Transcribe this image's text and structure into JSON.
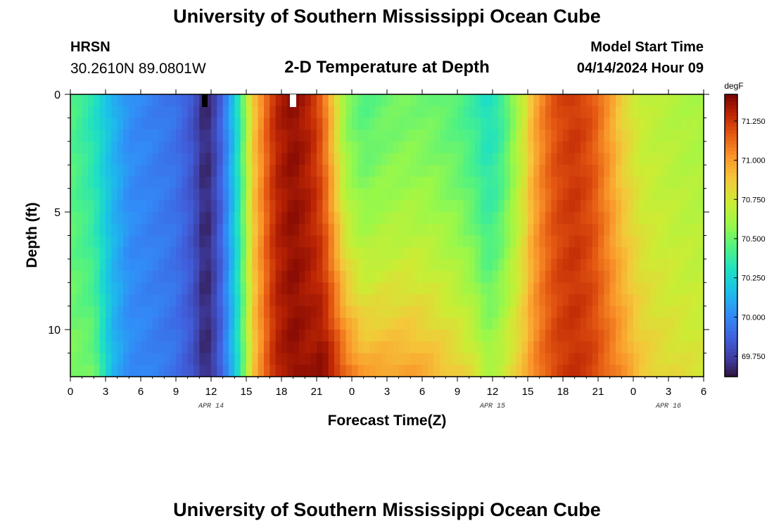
{
  "header": {
    "title": "University of Southern Mississippi Ocean Cube",
    "station": "HRSN",
    "coordinates": "30.2610N  89.0801W",
    "plot_title": "2-D Temperature at Depth",
    "start_label": "Model Start Time",
    "start_value": "04/14/2024 Hour 09"
  },
  "footer": {
    "title": "University of Southern Mississippi Ocean Cube"
  },
  "chart_data": {
    "type": "heatmap",
    "title": "2-D Temperature at Depth",
    "xlabel": "Forecast Time(Z)",
    "ylabel": "Depth (ft)",
    "x_range_hours": [
      0,
      54
    ],
    "x_ticks": [
      "0",
      "3",
      "6",
      "9",
      "12",
      "15",
      "18",
      "21",
      "0",
      "3",
      "6",
      "9",
      "12",
      "15",
      "18",
      "21",
      "0",
      "3",
      "6"
    ],
    "date_labels": [
      {
        "label": "APR 14",
        "hour": 12
      },
      {
        "label": "APR 15",
        "hour": 36
      },
      {
        "label": "APR 16",
        "hour": 51
      }
    ],
    "y_range_ft": [
      0,
      12
    ],
    "y_ticks": [
      "0",
      "5",
      "10"
    ],
    "y_reversed": true,
    "colorbar": {
      "unit": "degF",
      "range": [
        69.62,
        71.42
      ],
      "ticks": [
        "69.750",
        "70.000",
        "70.250",
        "70.500",
        "70.750",
        "71.000",
        "71.250"
      ]
    },
    "profile": [
      {
        "t": 0,
        "v": 70.45,
        "d": 0.1
      },
      {
        "t": 2,
        "v": 70.32,
        "d": 0.2
      },
      {
        "t": 3.5,
        "v": 70.15,
        "d": 0.0
      },
      {
        "t": 5,
        "v": 70.02,
        "d": 0.0
      },
      {
        "t": 7,
        "v": 69.98,
        "d": 0.0
      },
      {
        "t": 9,
        "v": 69.93,
        "d": 0.0
      },
      {
        "t": 10.5,
        "v": 69.82,
        "d": 0.0
      },
      {
        "t": 11.5,
        "v": 69.66,
        "d": 0.0
      },
      {
        "t": 12.5,
        "v": 69.8,
        "d": 0.0
      },
      {
        "t": 13.5,
        "v": 70.05,
        "d": 0.0
      },
      {
        "t": 14.5,
        "v": 70.38,
        "d": 0.0
      },
      {
        "t": 15.5,
        "v": 70.85,
        "d": 0.0
      },
      {
        "t": 16.5,
        "v": 71.1,
        "d": 0.0
      },
      {
        "t": 17.5,
        "v": 71.3,
        "d": 0.0
      },
      {
        "t": 19,
        "v": 71.38,
        "d": 0.0
      },
      {
        "t": 20.5,
        "v": 71.3,
        "d": 0.05
      },
      {
        "t": 21.5,
        "v": 71.15,
        "d": 0.25
      },
      {
        "t": 22.5,
        "v": 70.85,
        "d": 0.45
      },
      {
        "t": 23.5,
        "v": 70.55,
        "d": 0.6
      },
      {
        "t": 25,
        "v": 70.45,
        "d": 0.55
      },
      {
        "t": 27,
        "v": 70.5,
        "d": 0.5
      },
      {
        "t": 29,
        "v": 70.52,
        "d": 0.48
      },
      {
        "t": 31,
        "v": 70.5,
        "d": 0.45
      },
      {
        "t": 33,
        "v": 70.45,
        "d": 0.42
      },
      {
        "t": 34.5,
        "v": 70.38,
        "d": 0.4
      },
      {
        "t": 35.5,
        "v": 70.3,
        "d": 0.35
      },
      {
        "t": 36.5,
        "v": 70.35,
        "d": 0.35
      },
      {
        "t": 37.5,
        "v": 70.5,
        "d": 0.3
      },
      {
        "t": 38.5,
        "v": 70.7,
        "d": 0.2
      },
      {
        "t": 39.5,
        "v": 70.95,
        "d": 0.1
      },
      {
        "t": 40.5,
        "v": 71.1,
        "d": 0.05
      },
      {
        "t": 41.5,
        "v": 71.2,
        "d": 0.03
      },
      {
        "t": 43,
        "v": 71.25,
        "d": 0.02
      },
      {
        "t": 44.5,
        "v": 71.18,
        "d": 0.05
      },
      {
        "t": 46,
        "v": 71.0,
        "d": 0.12
      },
      {
        "t": 47,
        "v": 70.85,
        "d": 0.2
      },
      {
        "t": 48.5,
        "v": 70.72,
        "d": 0.18
      },
      {
        "t": 50,
        "v": 70.68,
        "d": 0.16
      },
      {
        "t": 52,
        "v": 70.65,
        "d": 0.15
      },
      {
        "t": 54,
        "v": 70.63,
        "d": 0.14
      }
    ]
  }
}
